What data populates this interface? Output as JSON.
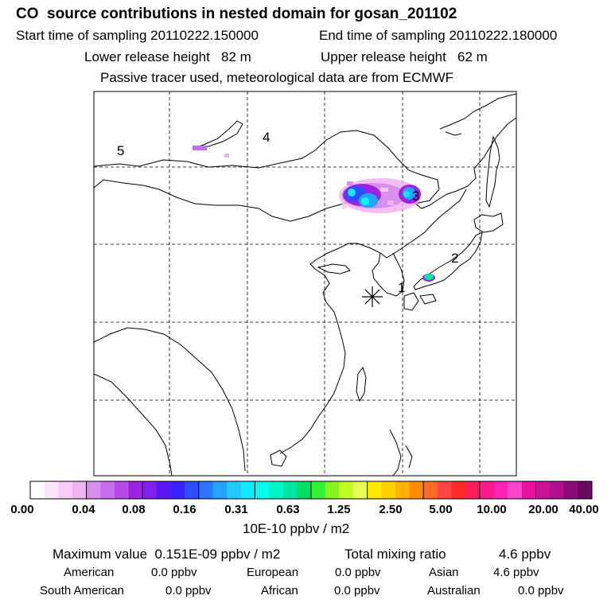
{
  "header": {
    "title": "CO  source contributions in nested domain for gosan_201102",
    "start_label": "Start time of sampling 20110222.150000",
    "end_label": "End time of sampling 20110222.180000",
    "lower_label": "Lower release height   82 m",
    "upper_label": "Upper release height   62 m",
    "note": "Passive tracer used, meteorological data are from ECMWF"
  },
  "map": {
    "region_labels": [
      "1",
      "2",
      "3",
      "4",
      "5"
    ]
  },
  "colorbar": {
    "colors": [
      "#ffffff",
      "#fbe6fb",
      "#f7cdf7",
      "#f2b3f2",
      "#d98ff0",
      "#c76bf0",
      "#b54ae8",
      "#9b22e0",
      "#7f22f2",
      "#5a18f5",
      "#3a22ff",
      "#2f4cff",
      "#2a76ff",
      "#22a3ff",
      "#22c8ff",
      "#12e8ff",
      "#00ffee",
      "#00f5c6",
      "#00e8a0",
      "#00dc66",
      "#33f233",
      "#88f522",
      "#c0ff22",
      "#e8ff55",
      "#ffe800",
      "#ffd000",
      "#ffb000",
      "#ff8a00",
      "#ff6a22",
      "#ff4444",
      "#ff2a2a",
      "#ff1a5a",
      "#ff1a8a",
      "#ff22b4",
      "#ff44cc",
      "#e8119f",
      "#cc1199",
      "#b01090",
      "#8a0a7a",
      "#6a0a60"
    ],
    "labels": [
      "0.00",
      "0.04",
      "0.08",
      "0.16",
      "0.31",
      "0.63",
      "1.25",
      "2.50",
      "5.00",
      "10.00",
      "20.00",
      "40.00"
    ],
    "unit": "10E-10 ppbv / m2"
  },
  "summary": {
    "max_label": "Maximum value  0.151E-09 ppbv / m2",
    "total_label": "Total mixing ratio",
    "total_value": "4.6 ppbv",
    "regions": [
      {
        "name": "American",
        "value": "0.0 ppbv"
      },
      {
        "name": "European",
        "value": "0.0 ppbv"
      },
      {
        "name": "Asian",
        "value": "4.6 ppbv"
      },
      {
        "name": "South American",
        "value": "0.0 ppbv"
      },
      {
        "name": "African",
        "value": "0.0 ppbv"
      },
      {
        "name": "Australian",
        "value": "0.0 ppbv"
      }
    ]
  }
}
